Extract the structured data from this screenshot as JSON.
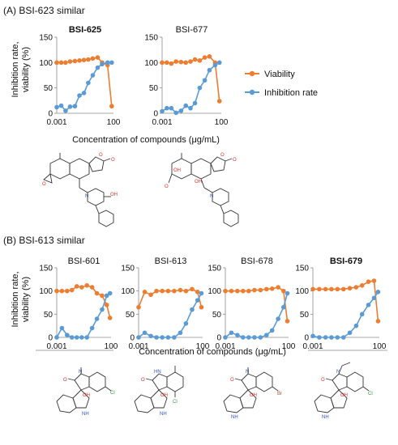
{
  "colors": {
    "viability": "#ED7D31",
    "inhibition": "#5B9BD5",
    "axis": "#8a8a8a",
    "structure": "#333333",
    "oxygen": "#e0302a",
    "nitrogen": "#2f4fd0",
    "halogen": "#2a9a3a",
    "bromine": "#a0522d"
  },
  "sectionA": {
    "title": "(A)  BSI-623 similar",
    "ylabel_line1": "Inhibition rate,",
    "ylabel_line2": "viability (%)",
    "xlabel": "Concentration of compounds (μg/mL)"
  },
  "sectionB": {
    "title": "(B)  BSI-613 similar",
    "ylabel_line1": "Inhibition rate,",
    "ylabel_line2": "viability (%)",
    "xlabel": "Concentration of compounds (μg/mL)"
  },
  "legend": [
    {
      "label": "Viability",
      "color": "#ED7D31"
    },
    {
      "label": "Inhibition rate",
      "color": "#5B9BD5"
    }
  ],
  "structures": {
    "A": [
      {
        "atoms": [
          "O",
          "O",
          "O",
          "N",
          "OH"
        ]
      },
      {
        "atoms": [
          "O",
          "O",
          "O",
          "N",
          "OH",
          "OH"
        ]
      }
    ],
    "B": [
      {
        "atoms": [
          "N",
          "O",
          "OH",
          "NH",
          "Cl"
        ]
      },
      {
        "atoms": [
          "HN",
          "O",
          "OH",
          "NH",
          "Cl"
        ]
      },
      {
        "atoms": [
          "N",
          "O",
          "OH",
          "NH",
          "Br"
        ]
      },
      {
        "atoms": [
          "N",
          "O",
          "OH",
          "NH",
          "Cl"
        ]
      }
    ]
  },
  "chart_data": [
    {
      "type": "line",
      "title": "BSI-625",
      "bold": true,
      "section": "A",
      "xscale": "log",
      "xlim": [
        0.001,
        100
      ],
      "ylim": [
        0,
        150
      ],
      "xticks": [
        "0.001",
        "100"
      ],
      "yticks": [
        "0",
        "50",
        "100",
        "150"
      ],
      "series": [
        {
          "name": "Viability",
          "x": [
            0.001,
            0.0025,
            0.006,
            0.015,
            0.04,
            0.1,
            0.25,
            0.6,
            1.5,
            4,
            10,
            30,
            70
          ],
          "y": [
            100,
            100,
            100,
            102,
            103,
            104,
            105,
            106,
            108,
            110,
            100,
            95,
            14
          ]
        },
        {
          "name": "Inhibition rate",
          "x": [
            0.001,
            0.0025,
            0.006,
            0.015,
            0.04,
            0.1,
            0.25,
            0.6,
            1.5,
            4,
            10,
            30,
            70
          ],
          "y": [
            12,
            15,
            5,
            13,
            14,
            35,
            40,
            60,
            75,
            90,
            97,
            100,
            100
          ]
        }
      ]
    },
    {
      "type": "line",
      "title": "BSI-677",
      "bold": false,
      "section": "A",
      "xscale": "log",
      "xlim": [
        0.001,
        100
      ],
      "ylim": [
        0,
        150
      ],
      "xticks": [
        "0.001",
        "100"
      ],
      "yticks": [
        "0",
        "50",
        "100",
        "150"
      ],
      "series": [
        {
          "name": "Viability",
          "x": [
            0.001,
            0.0025,
            0.006,
            0.015,
            0.04,
            0.1,
            0.25,
            0.6,
            1.5,
            4,
            10,
            30,
            70
          ],
          "y": [
            100,
            100,
            98,
            102,
            101,
            100,
            102,
            106,
            104,
            110,
            112,
            100,
            24
          ]
        },
        {
          "name": "Inhibition rate",
          "x": [
            0.001,
            0.0025,
            0.006,
            0.015,
            0.04,
            0.1,
            0.25,
            0.6,
            1.5,
            4,
            10,
            30,
            70
          ],
          "y": [
            4,
            10,
            10,
            1,
            5,
            15,
            10,
            20,
            50,
            65,
            85,
            95,
            100
          ]
        }
      ]
    },
    {
      "type": "line",
      "title": "BSI-601",
      "bold": false,
      "section": "B",
      "xscale": "log",
      "xlim": [
        0.001,
        100
      ],
      "ylim": [
        0,
        150
      ],
      "xticks": [
        "0.001",
        "100"
      ],
      "yticks": [
        "0",
        "50",
        "100",
        "150"
      ],
      "series": [
        {
          "name": "Viability",
          "x": [
            0.001,
            0.003,
            0.009,
            0.025,
            0.07,
            0.2,
            0.6,
            1.8,
            5,
            15,
            40,
            80
          ],
          "y": [
            100,
            100,
            100,
            102,
            110,
            108,
            112,
            108,
            95,
            90,
            70,
            42
          ]
        },
        {
          "name": "Inhibition rate",
          "x": [
            0.001,
            0.003,
            0.009,
            0.025,
            0.07,
            0.2,
            0.6,
            1.8,
            5,
            15,
            40,
            80
          ],
          "y": [
            0,
            20,
            5,
            0,
            0,
            0,
            0,
            20,
            40,
            60,
            90,
            95
          ]
        }
      ]
    },
    {
      "type": "line",
      "title": "BSI-613",
      "bold": false,
      "section": "B",
      "xscale": "log",
      "xlim": [
        0.001,
        100
      ],
      "ylim": [
        0,
        150
      ],
      "xticks": [
        "0.001",
        "100"
      ],
      "yticks": [
        "0",
        "50",
        "100",
        "150"
      ],
      "series": [
        {
          "name": "Viability",
          "x": [
            0.001,
            0.003,
            0.009,
            0.025,
            0.07,
            0.2,
            0.6,
            1.8,
            5,
            15,
            40,
            80
          ],
          "y": [
            65,
            98,
            92,
            100,
            100,
            100,
            100,
            102,
            100,
            104,
            98,
            65
          ]
        },
        {
          "name": "Inhibition rate",
          "x": [
            0.001,
            0.003,
            0.009,
            0.025,
            0.07,
            0.2,
            0.6,
            1.8,
            5,
            15,
            40,
            80
          ],
          "y": [
            0,
            10,
            3,
            0,
            0,
            0,
            0,
            10,
            30,
            60,
            80,
            95
          ]
        }
      ]
    },
    {
      "type": "line",
      "title": "BSI-678",
      "bold": false,
      "section": "B",
      "xscale": "log",
      "xlim": [
        0.001,
        100
      ],
      "ylim": [
        0,
        150
      ],
      "xticks": [
        "0.001",
        "100"
      ],
      "yticks": [
        "0",
        "50",
        "100",
        "150"
      ],
      "series": [
        {
          "name": "Viability",
          "x": [
            0.001,
            0.003,
            0.009,
            0.025,
            0.07,
            0.2,
            0.6,
            1.8,
            5,
            15,
            40,
            80
          ],
          "y": [
            100,
            100,
            100,
            100,
            100,
            102,
            102,
            104,
            105,
            108,
            100,
            35
          ]
        },
        {
          "name": "Inhibition rate",
          "x": [
            0.001,
            0.003,
            0.009,
            0.025,
            0.07,
            0.2,
            0.6,
            1.8,
            5,
            15,
            40,
            80
          ],
          "y": [
            0,
            10,
            5,
            0,
            0,
            0,
            0,
            5,
            15,
            40,
            65,
            95
          ]
        }
      ]
    },
    {
      "type": "line",
      "title": "BSI-679",
      "bold": true,
      "section": "B",
      "xscale": "log",
      "xlim": [
        0.001,
        100
      ],
      "ylim": [
        0,
        150
      ],
      "xticks": [
        "0.001",
        "100"
      ],
      "yticks": [
        "0",
        "50",
        "100",
        "150"
      ],
      "series": [
        {
          "name": "Viability",
          "x": [
            0.001,
            0.003,
            0.009,
            0.025,
            0.07,
            0.2,
            0.6,
            1.8,
            5,
            15,
            40,
            80
          ],
          "y": [
            104,
            104,
            104,
            104,
            104,
            104,
            106,
            108,
            112,
            120,
            122,
            35
          ]
        },
        {
          "name": "Inhibition rate",
          "x": [
            0.001,
            0.003,
            0.009,
            0.025,
            0.07,
            0.2,
            0.6,
            1.8,
            5,
            15,
            40,
            80
          ],
          "y": [
            3,
            0,
            0,
            0,
            0,
            0,
            10,
            25,
            50,
            70,
            85,
            98
          ]
        }
      ]
    }
  ]
}
